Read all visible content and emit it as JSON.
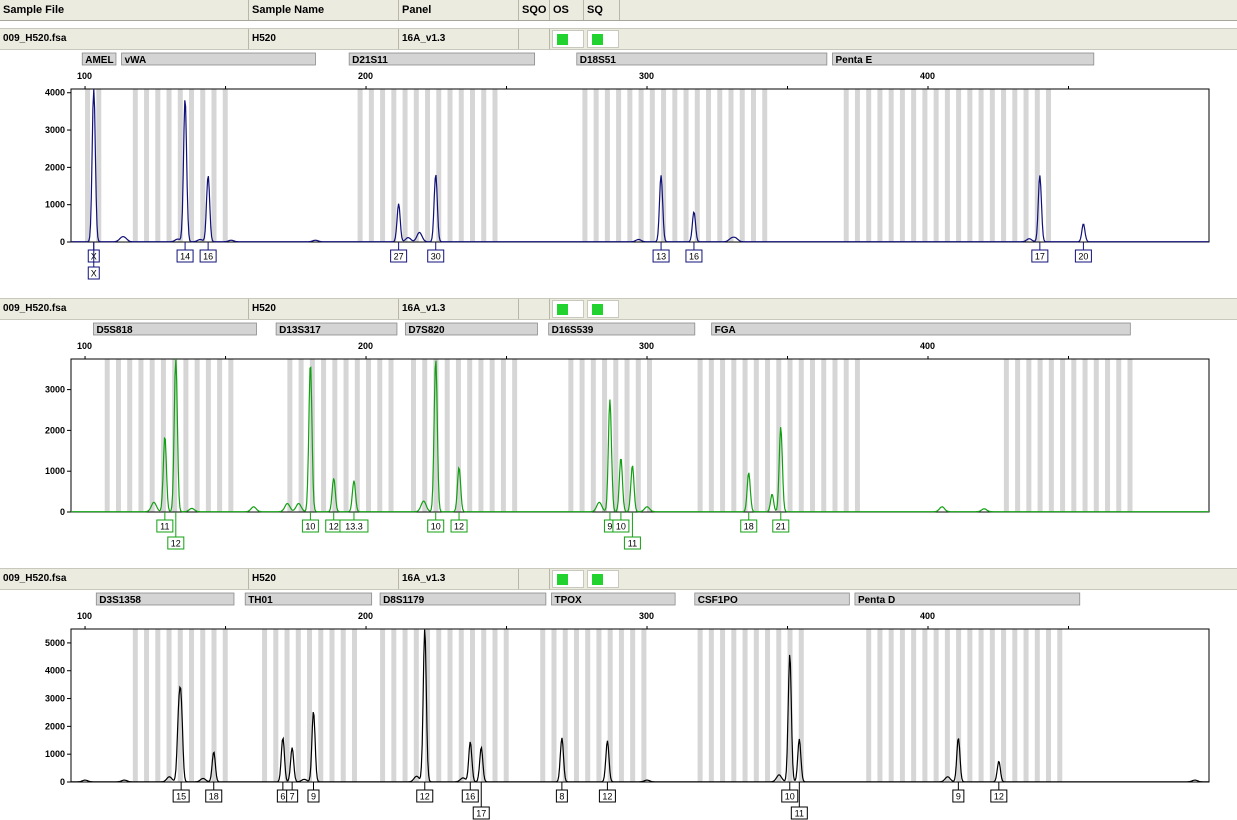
{
  "header": {
    "columns": [
      "Sample File",
      "Sample Name",
      "Panel",
      "SQO",
      "OS",
      "SQ"
    ]
  },
  "colors": {
    "blue": "#10107a",
    "green": "#11a011",
    "black": "#000000",
    "bin": "#d6d6d6",
    "locus": "#d4d4d4",
    "flag": "#22d22e"
  },
  "chart_data": [
    {
      "type": "line",
      "dye": "blue",
      "sample_file": "009_H520.fsa",
      "sample_name": "H520",
      "panel": "16A_v1.3",
      "xlim": [
        95,
        500
      ],
      "ylim": [
        0,
        4100
      ],
      "x_ticks": [
        100,
        200,
        300,
        400
      ],
      "y_ticks": [
        0,
        1000,
        2000,
        3000,
        4000
      ],
      "loci": [
        {
          "name": "AMEL",
          "start": 99,
          "end": 111
        },
        {
          "name": "vWA",
          "start": 113,
          "end": 182
        },
        {
          "name": "D21S11",
          "start": 194,
          "end": 260
        },
        {
          "name": "D18S51",
          "start": 275,
          "end": 364
        },
        {
          "name": "Penta E",
          "start": 366,
          "end": 459
        }
      ],
      "bins": [
        [
          100,
          105
        ],
        [
          117,
          151
        ],
        [
          197,
          248
        ],
        [
          277,
          342
        ],
        [
          370,
          444
        ]
      ],
      "peaks": [
        {
          "x": 103.1,
          "h": 4100
        },
        {
          "x": 135.6,
          "h": 3850
        },
        {
          "x": 143.8,
          "h": 1780
        },
        {
          "x": 211.6,
          "h": 1020
        },
        {
          "x": 224.8,
          "h": 1810
        },
        {
          "x": 305.0,
          "h": 1780
        },
        {
          "x": 316.7,
          "h": 800
        },
        {
          "x": 439.8,
          "h": 1780
        },
        {
          "x": 455.3,
          "h": 480
        },
        {
          "x": 113.0,
          "h": 90
        },
        {
          "x": 114.2,
          "h": 80
        },
        {
          "x": 133.0,
          "h": 70
        },
        {
          "x": 141.0,
          "h": 60
        },
        {
          "x": 219.0,
          "h": 250
        },
        {
          "x": 215.0,
          "h": 110
        },
        {
          "x": 297.0,
          "h": 60
        },
        {
          "x": 330.0,
          "h": 80
        },
        {
          "x": 331.5,
          "h": 90
        },
        {
          "x": 152.0,
          "h": 40
        },
        {
          "x": 182.0,
          "h": 40
        },
        {
          "x": 436.0,
          "h": 80
        }
      ],
      "alleles": [
        {
          "x": 103.1,
          "label": "X",
          "row": 0
        },
        {
          "x": 103.1,
          "label": "X",
          "row": 1
        },
        {
          "x": 135.6,
          "label": "14",
          "row": 0
        },
        {
          "x": 143.8,
          "label": "16",
          "row": 0
        },
        {
          "x": 211.6,
          "label": "27",
          "row": 0
        },
        {
          "x": 224.8,
          "label": "30",
          "row": 0
        },
        {
          "x": 305.0,
          "label": "13",
          "row": 0
        },
        {
          "x": 316.7,
          "label": "16",
          "row": 0
        },
        {
          "x": 439.8,
          "label": "17",
          "row": 0
        },
        {
          "x": 455.3,
          "label": "20",
          "row": 0
        }
      ]
    },
    {
      "type": "line",
      "dye": "green",
      "sample_file": "009_H520.fsa",
      "sample_name": "H520",
      "panel": "16A_v1.3",
      "xlim": [
        95,
        500
      ],
      "ylim": [
        0,
        3750
      ],
      "x_ticks": [
        100,
        200,
        300,
        400
      ],
      "y_ticks": [
        0,
        1000,
        2000,
        3000
      ],
      "loci": [
        {
          "name": "D5S818",
          "start": 103,
          "end": 161
        },
        {
          "name": "D13S317",
          "start": 168,
          "end": 211
        },
        {
          "name": "D7S820",
          "start": 214,
          "end": 261
        },
        {
          "name": "D16S539",
          "start": 265,
          "end": 317
        },
        {
          "name": "FGA",
          "start": 323,
          "end": 472
        }
      ],
      "bins": [
        [
          107,
          151
        ],
        [
          172,
          210
        ],
        [
          216,
          253
        ],
        [
          272,
          302
        ],
        [
          318,
          374
        ],
        [
          427,
          471
        ]
      ],
      "peaks": [
        {
          "x": 128.4,
          "h": 1850
        },
        {
          "x": 132.3,
          "h": 3750
        },
        {
          "x": 180.2,
          "h": 3650
        },
        {
          "x": 188.5,
          "h": 820
        },
        {
          "x": 195.7,
          "h": 760
        },
        {
          "x": 224.8,
          "h": 3750
        },
        {
          "x": 233.1,
          "h": 1090
        },
        {
          "x": 286.8,
          "h": 2750
        },
        {
          "x": 290.7,
          "h": 1320
        },
        {
          "x": 294.8,
          "h": 1140
        },
        {
          "x": 336.2,
          "h": 960
        },
        {
          "x": 347.6,
          "h": 2080
        },
        {
          "x": 124.5,
          "h": 230
        },
        {
          "x": 172.0,
          "h": 200
        },
        {
          "x": 176.0,
          "h": 200
        },
        {
          "x": 220.5,
          "h": 260
        },
        {
          "x": 283.0,
          "h": 230
        },
        {
          "x": 344.5,
          "h": 430
        },
        {
          "x": 300.0,
          "h": 120
        },
        {
          "x": 405.0,
          "h": 120
        },
        {
          "x": 420.0,
          "h": 70
        },
        {
          "x": 160.0,
          "h": 120
        },
        {
          "x": 138.0,
          "h": 80
        }
      ],
      "alleles": [
        {
          "x": 128.4,
          "label": "11",
          "row": 0
        },
        {
          "x": 132.3,
          "label": "12",
          "row": 1
        },
        {
          "x": 180.2,
          "label": "10",
          "row": 0
        },
        {
          "x": 188.5,
          "label": "12",
          "row": 0
        },
        {
          "x": 195.7,
          "label": "13.3",
          "row": 0
        },
        {
          "x": 224.8,
          "label": "10",
          "row": 0
        },
        {
          "x": 233.1,
          "label": "12",
          "row": 0
        },
        {
          "x": 286.8,
          "label": "9",
          "row": 0
        },
        {
          "x": 290.7,
          "label": "10",
          "row": 0
        },
        {
          "x": 294.8,
          "label": "11",
          "row": 1
        },
        {
          "x": 336.2,
          "label": "18",
          "row": 0
        },
        {
          "x": 347.6,
          "label": "21",
          "row": 0
        }
      ]
    },
    {
      "type": "line",
      "dye": "black",
      "sample_file": "009_H520.fsa",
      "sample_name": "H520",
      "panel": "16A_v1.3",
      "xlim": [
        95,
        500
      ],
      "ylim": [
        0,
        5500
      ],
      "x_ticks": [
        100,
        200,
        300,
        400
      ],
      "y_ticks": [
        0,
        1000,
        2000,
        3000,
        4000,
        5000
      ],
      "loci": [
        {
          "name": "D3S1358",
          "start": 104,
          "end": 153
        },
        {
          "name": "TH01",
          "start": 157,
          "end": 202
        },
        {
          "name": "D8S1179",
          "start": 205,
          "end": 264
        },
        {
          "name": "TPOX",
          "start": 266,
          "end": 310
        },
        {
          "name": "CSF1PO",
          "start": 317,
          "end": 372
        },
        {
          "name": "Penta D",
          "start": 374,
          "end": 454
        }
      ],
      "bins": [
        [
          117,
          151
        ],
        [
          163,
          197
        ],
        [
          205,
          252
        ],
        [
          262,
          298
        ],
        [
          318,
          357
        ],
        [
          378,
          449
        ]
      ],
      "peaks": [
        {
          "x": 134.2,
          "h": 2620
        },
        {
          "x": 133.3,
          "h": 2120
        },
        {
          "x": 145.8,
          "h": 1080
        },
        {
          "x": 170.4,
          "h": 1580
        },
        {
          "x": 173.7,
          "h": 1230
        },
        {
          "x": 181.3,
          "h": 2540
        },
        {
          "x": 220.9,
          "h": 5500
        },
        {
          "x": 237.1,
          "h": 1440
        },
        {
          "x": 241.0,
          "h": 1240
        },
        {
          "x": 269.7,
          "h": 1580
        },
        {
          "x": 285.9,
          "h": 1480
        },
        {
          "x": 350.8,
          "h": 4600
        },
        {
          "x": 354.2,
          "h": 1540
        },
        {
          "x": 410.8,
          "h": 1580
        },
        {
          "x": 425.2,
          "h": 740
        },
        {
          "x": 130.0,
          "h": 180
        },
        {
          "x": 142.0,
          "h": 120
        },
        {
          "x": 178.0,
          "h": 90
        },
        {
          "x": 218.0,
          "h": 200
        },
        {
          "x": 234.5,
          "h": 140
        },
        {
          "x": 347.0,
          "h": 250
        },
        {
          "x": 407.0,
          "h": 180
        },
        {
          "x": 100.0,
          "h": 60
        },
        {
          "x": 114.0,
          "h": 60
        },
        {
          "x": 495.0,
          "h": 60
        },
        {
          "x": 300.0,
          "h": 60
        }
      ],
      "alleles": [
        {
          "x": 134.2,
          "label": "15",
          "row": 0
        },
        {
          "x": 145.8,
          "label": "18",
          "row": 0
        },
        {
          "x": 170.4,
          "label": "6",
          "row": 0
        },
        {
          "x": 173.7,
          "label": "7",
          "row": 0
        },
        {
          "x": 181.3,
          "label": "9",
          "row": 0
        },
        {
          "x": 220.9,
          "label": "12",
          "row": 0
        },
        {
          "x": 237.1,
          "label": "16",
          "row": 0
        },
        {
          "x": 241.0,
          "label": "17",
          "row": 1
        },
        {
          "x": 269.7,
          "label": "8",
          "row": 0
        },
        {
          "x": 285.9,
          "label": "12",
          "row": 0
        },
        {
          "x": 350.8,
          "label": "10",
          "row": 0
        },
        {
          "x": 354.2,
          "label": "11",
          "row": 1
        },
        {
          "x": 410.8,
          "label": "9",
          "row": 0
        },
        {
          "x": 425.2,
          "label": "12",
          "row": 0
        }
      ]
    }
  ]
}
